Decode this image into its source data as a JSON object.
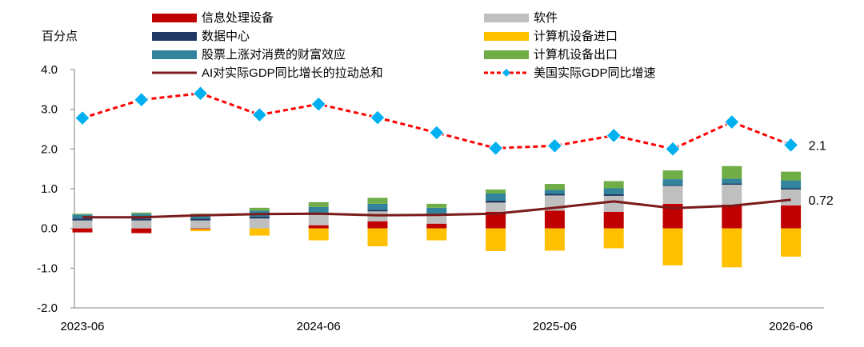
{
  "chart_data": {
    "type": "bar",
    "ylabel": "百分点",
    "ylim": [
      -2.0,
      4.0
    ],
    "yticks": [
      "4.0",
      "3.0",
      "2.0",
      "1.0",
      "0.0",
      "-1.0",
      "-2.0"
    ],
    "x": [
      "2023-06",
      "2023-09",
      "2023-12",
      "2024-03",
      "2024-06",
      "2024-09",
      "2024-12",
      "2025-03",
      "2025-06",
      "2025-09",
      "2025-12",
      "2026-03",
      "2026-06"
    ],
    "xtick_labels": [
      "2023-06",
      "2024-06",
      "2025-06",
      "2026-06"
    ],
    "legend_position": "top",
    "colors": {
      "info": "#C00000",
      "software": "#BFBFBF",
      "datacenter": "#1F3864",
      "import": "#FFC000",
      "stock": "#31849B",
      "export": "#70AD47",
      "ai_total": "#7B1A1A",
      "gdp": "#FF0000",
      "gdp_marker": "#00B0F0"
    },
    "series": [
      {
        "key": "info",
        "name": "信息处理设备",
        "kind": "bar",
        "values": [
          -0.1,
          -0.12,
          -0.02,
          0.0,
          0.08,
          0.18,
          0.12,
          0.42,
          0.45,
          0.42,
          0.62,
          0.6,
          0.58
        ]
      },
      {
        "key": "software",
        "name": "软件",
        "kind": "bar",
        "values": [
          0.2,
          0.2,
          0.2,
          0.25,
          0.27,
          0.25,
          0.2,
          0.23,
          0.38,
          0.4,
          0.45,
          0.5,
          0.4
        ]
      },
      {
        "key": "datacenter",
        "name": "数据中心",
        "kind": "bar",
        "values": [
          0.05,
          0.05,
          0.05,
          0.05,
          0.04,
          0.04,
          0.05,
          0.05,
          0.04,
          0.04,
          0.02,
          0.03,
          0.03
        ]
      },
      {
        "key": "import",
        "name": "计算机设备进口",
        "kind": "bar",
        "values": [
          0.0,
          0.0,
          -0.05,
          -0.18,
          -0.3,
          -0.45,
          -0.3,
          -0.57,
          -0.56,
          -0.5,
          -0.93,
          -0.98,
          -0.71
        ]
      },
      {
        "key": "stock",
        "name": "股票上涨对消费的财富效应",
        "kind": "bar",
        "values": [
          0.1,
          0.12,
          0.1,
          0.15,
          0.15,
          0.15,
          0.15,
          0.18,
          0.1,
          0.15,
          0.15,
          0.12,
          0.2
        ]
      },
      {
        "key": "export",
        "name": "计算机设备出口",
        "kind": "bar",
        "values": [
          0.02,
          0.03,
          0.02,
          0.07,
          0.12,
          0.15,
          0.1,
          0.1,
          0.15,
          0.18,
          0.22,
          0.32,
          0.22
        ]
      },
      {
        "key": "ai_total",
        "name": "AI对实际GDP同比增长的拉动总和",
        "kind": "line",
        "values": [
          0.28,
          0.28,
          0.33,
          0.36,
          0.37,
          0.33,
          0.34,
          0.37,
          0.52,
          0.68,
          0.51,
          0.57,
          0.72
        ]
      },
      {
        "key": "gdp",
        "name": "美国实际GDP同比增速",
        "kind": "line-marker",
        "values": [
          2.78,
          3.24,
          3.4,
          2.86,
          3.13,
          2.79,
          2.41,
          2.02,
          2.08,
          2.34,
          2.0,
          2.68,
          2.1
        ]
      }
    ],
    "annotations": [
      {
        "series": "gdp",
        "index": 12,
        "text": "2.1"
      },
      {
        "series": "ai_total",
        "index": 12,
        "text": "0.72"
      }
    ]
  }
}
